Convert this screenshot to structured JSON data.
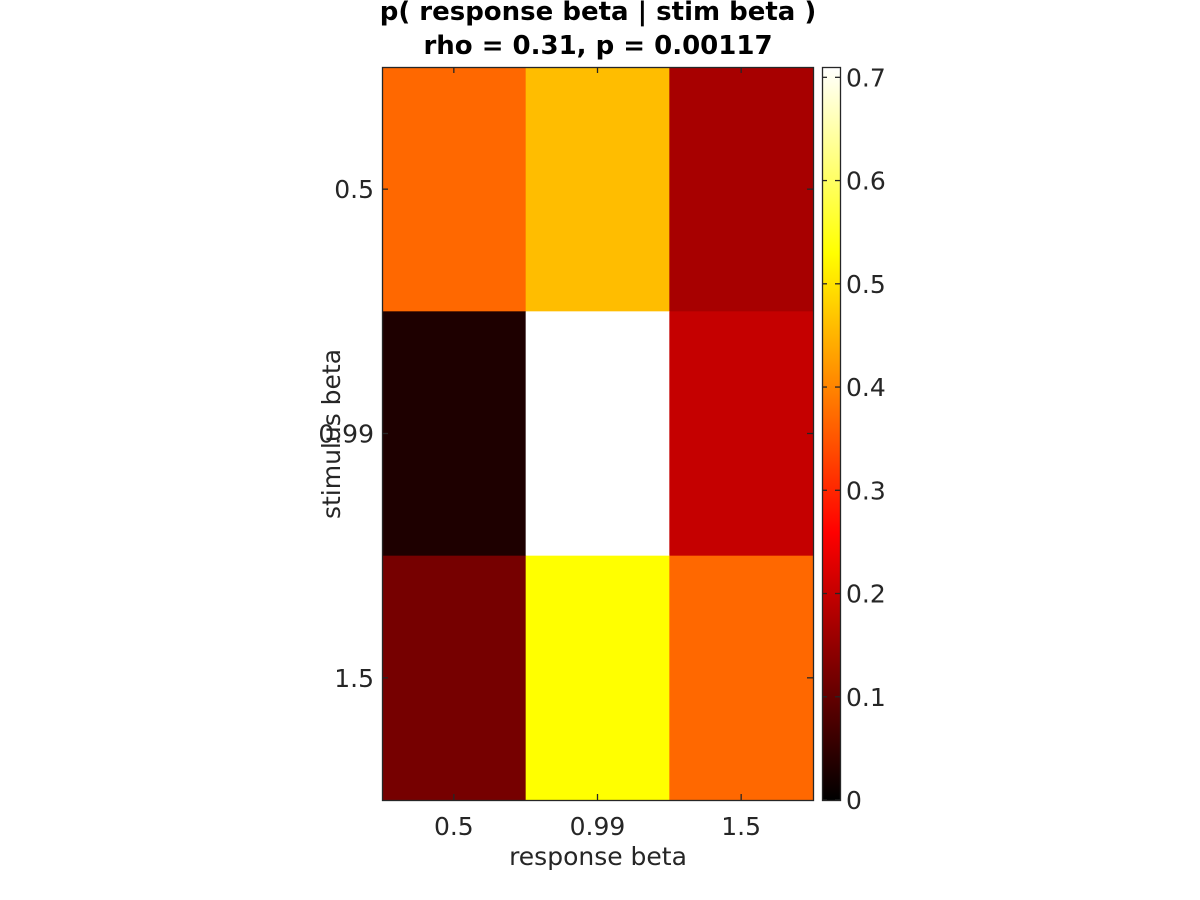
{
  "chart_data": {
    "type": "heatmap",
    "title": "p( response beta | stim beta )",
    "subtitle": "rho = 0.31, p = 0.00117",
    "xlabel": "response beta",
    "ylabel": "stimulus beta",
    "x_categories": [
      "0.5",
      "0.99",
      "1.5"
    ],
    "y_categories": [
      "0.5",
      "0.99",
      "1.5"
    ],
    "values": [
      [
        0.37,
        0.46,
        0.17
      ],
      [
        0.03,
        0.71,
        0.2
      ],
      [
        0.12,
        0.53,
        0.37
      ]
    ],
    "colormap": "hot",
    "colorbar": {
      "range": [
        0,
        0.71
      ],
      "ticks": [
        0,
        0.1,
        0.2,
        0.3,
        0.4,
        0.5,
        0.6,
        0.7
      ],
      "tick_labels": [
        "0",
        "0.1",
        "0.2",
        "0.3",
        "0.4",
        "0.5",
        "0.6",
        "0.7"
      ]
    },
    "grid": false
  }
}
